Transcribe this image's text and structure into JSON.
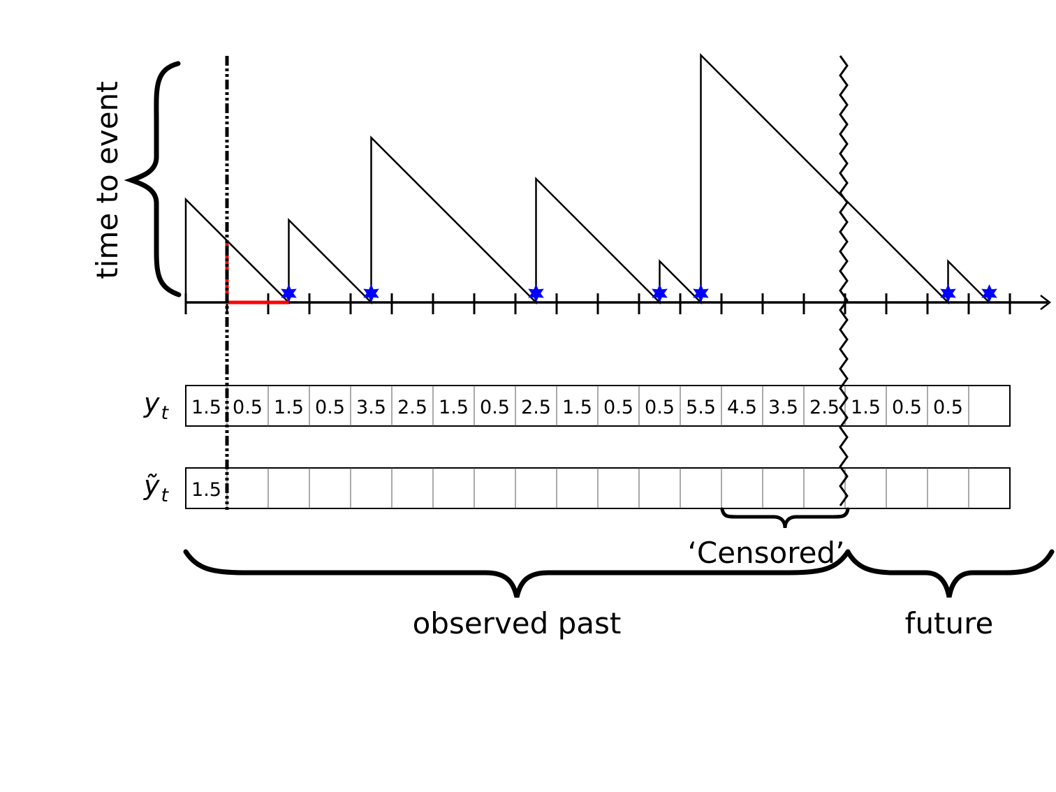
{
  "labels": {
    "y_axis": "time to event",
    "row1": "y",
    "row1_sub": "t",
    "row2": "ỹ",
    "row2_sub": "t",
    "censored": "‘Censored’",
    "observed_past": "observed past",
    "future": "future"
  },
  "y_row": [
    "1.5",
    "0.5",
    "1.5",
    "0.5",
    "3.5",
    "2.5",
    "1.5",
    "0.5",
    "2.5",
    "1.5",
    "0.5",
    "0.5",
    "5.5",
    "4.5",
    "3.5",
    "2.5",
    "1.5",
    "0.5",
    "0.5",
    ""
  ],
  "y_tilde_row": [
    "1.5",
    "",
    "",
    "",
    "",
    "",
    "",
    "",
    "",
    "",
    "",
    "",
    "",
    "",
    "",
    "",
    "",
    "",
    "",
    ""
  ],
  "timeline": {
    "num_steps": 20,
    "event_times": [
      2.5,
      4.5,
      8.5,
      11.5,
      12.5,
      18.5,
      19.5
    ],
    "tte_start_values": [
      2.5,
      2.0,
      4.0,
      3.0,
      1.0,
      6.0,
      1.0
    ],
    "query_time": 1,
    "censor_time": 16
  },
  "colors": {
    "line": "#000000",
    "event_marker": "#0000ff",
    "highlight": "#ff0000"
  }
}
